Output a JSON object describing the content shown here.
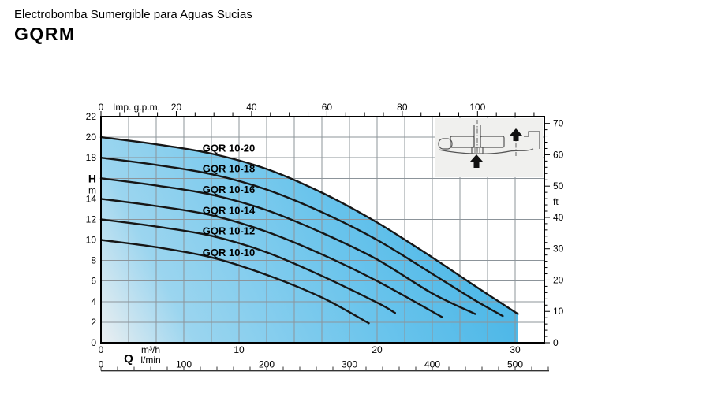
{
  "header": {
    "subtitle": "Electrobomba Sumergible para Aguas Sucias",
    "model": "GQRM"
  },
  "chart_data": {
    "type": "line",
    "title": "GQRM pump performance curves (head vs. flow)",
    "x_axis_top": {
      "title": "Imp. g.p.m.",
      "major_ticks": [
        0,
        20,
        40,
        60,
        80,
        100
      ],
      "minor_step": 5,
      "minor_max": 115
    },
    "y_axis_left": {
      "symbol": "H",
      "unit": "m",
      "major_ticks": [
        22,
        20,
        18,
        14,
        12,
        10,
        8,
        6,
        4,
        2,
        0
      ],
      "unit_at_value": 16,
      "range": [
        0,
        22
      ]
    },
    "y_axis_right": {
      "unit": "ft",
      "major_ticks": [
        70,
        60,
        50,
        40,
        30,
        20,
        10,
        0
      ],
      "minor_step": 2,
      "unit_at_value": 45,
      "range": [
        0,
        72
      ]
    },
    "x_axis_bottom_m3h": {
      "symbol": "Q",
      "unit": "m³/h",
      "major_ticks": [
        0,
        10,
        20,
        30
      ]
    },
    "x_axis_bottom_lmin": {
      "unit": "l/min",
      "major_ticks": [
        0,
        100,
        200,
        300,
        400,
        500
      ],
      "minor_step": 20,
      "minor_max": 540
    },
    "x_range_m3h": [
      0,
      32.1
    ],
    "grid_step": {
      "x_m3h": 2,
      "y_m": 2
    },
    "label_anchor_q": 9.26,
    "series": [
      {
        "name": "GQR 10-20",
        "points": [
          [
            0,
            20
          ],
          [
            4,
            19.3
          ],
          [
            8,
            18.4
          ],
          [
            12,
            16.9
          ],
          [
            16,
            14.6
          ],
          [
            20,
            11.7
          ],
          [
            24,
            8.3
          ],
          [
            27,
            5.6
          ],
          [
            30.2,
            2.8
          ]
        ]
      },
      {
        "name": "GQR 10-18",
        "points": [
          [
            0,
            18
          ],
          [
            4,
            17.3
          ],
          [
            8,
            16.4
          ],
          [
            12,
            14.9
          ],
          [
            16,
            12.7
          ],
          [
            20,
            10.0
          ],
          [
            24,
            6.7
          ],
          [
            27,
            4.2
          ],
          [
            29.1,
            2.6
          ]
        ]
      },
      {
        "name": "GQR 10-16",
        "points": [
          [
            0,
            16
          ],
          [
            4,
            15.3
          ],
          [
            8,
            14.4
          ],
          [
            12,
            12.9
          ],
          [
            16,
            10.7
          ],
          [
            20,
            8.1
          ],
          [
            24,
            4.8
          ],
          [
            27.1,
            2.8
          ]
        ]
      },
      {
        "name": "GQR 10-14",
        "points": [
          [
            0,
            14
          ],
          [
            4,
            13.3
          ],
          [
            8,
            12.4
          ],
          [
            12,
            10.8
          ],
          [
            16,
            8.6
          ],
          [
            20,
            6.0
          ],
          [
            24.7,
            2.5
          ]
        ]
      },
      {
        "name": "GQR 10-12",
        "points": [
          [
            0,
            12
          ],
          [
            4,
            11.3
          ],
          [
            8,
            10.4
          ],
          [
            12,
            8.8
          ],
          [
            16,
            6.5
          ],
          [
            20,
            3.9
          ],
          [
            21.3,
            2.9
          ]
        ]
      },
      {
        "name": "GQR 10-10",
        "points": [
          [
            0,
            10
          ],
          [
            4,
            9.3
          ],
          [
            8,
            8.3
          ],
          [
            12,
            6.6
          ],
          [
            16,
            4.4
          ],
          [
            19.4,
            1.9
          ]
        ]
      }
    ],
    "colors": {
      "curve": "#161616",
      "grid": "#8c949a",
      "plot_border": "#000000",
      "fill_gradient": [
        [
          "0",
          "#eceff1"
        ],
        [
          "0.18",
          "#9bd5ef"
        ],
        [
          "0.55",
          "#6ac4ec"
        ],
        [
          "1",
          "#3aafe4"
        ]
      ],
      "inset_bg": "#f0f0ee",
      "inset_line": "#555555",
      "arrow": "#111111"
    }
  }
}
